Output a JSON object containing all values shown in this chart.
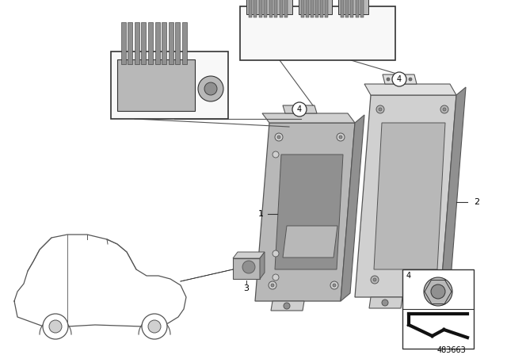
{
  "background_color": "#ffffff",
  "diagram_number": "483663",
  "gray_light": "#d0d0d0",
  "gray_mid": "#b8b8b8",
  "gray_dark": "#909090",
  "gray_darker": "#707070",
  "line_color": "#555555",
  "dark": "#333333",
  "black": "#111111",
  "white": "#ffffff"
}
